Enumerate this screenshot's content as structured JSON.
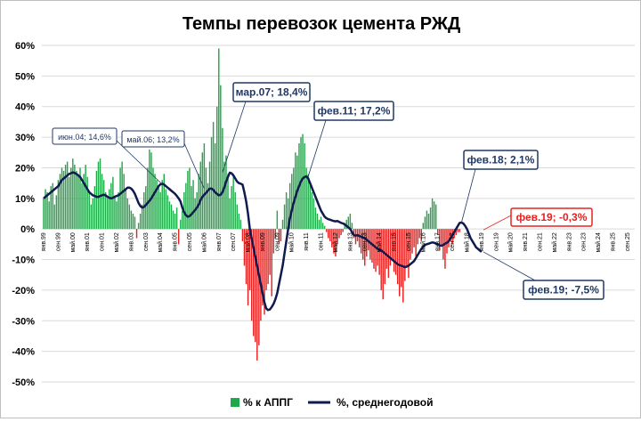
{
  "chart_data": {
    "type": "bar",
    "title": "Темпы перевозок цемента РЖД",
    "ylim": [
      -50,
      60
    ],
    "grid": true,
    "legend_position": "bottom",
    "y_ticks": [
      "60%",
      "50%",
      "40%",
      "30%",
      "20%",
      "10%",
      "0%",
      "-10%",
      "-20%",
      "-30%",
      "-40%",
      "-50%"
    ],
    "x_ticks": [
      "янв.99",
      "сен.99",
      "май.00",
      "янв.01",
      "сен.01",
      "май.02",
      "янв.03",
      "сен.03",
      "май.04",
      "янв.05",
      "сен.05",
      "май.06",
      "янв.07",
      "сен.07",
      "май.08",
      "янв.09",
      "сен.09",
      "май.10",
      "янв.11",
      "сен.11",
      "май.12",
      "янв.13",
      "сен.13",
      "май.14",
      "янв.15",
      "сен.15",
      "май.16",
      "янв.17",
      "сен.17",
      "май.18",
      "янв.19",
      "сен.19",
      "май.20",
      "янв.21",
      "сен.21",
      "май.22",
      "янв.23",
      "сен.23",
      "май.24",
      "янв.25",
      "сен.25"
    ],
    "series": [
      {
        "name": "% к АППГ",
        "type": "bar",
        "positive_color": "#21a84a",
        "negative_color": "#e8201f",
        "values": [
          10,
          13,
          12,
          9,
          14,
          15,
          8,
          11,
          16,
          18,
          20,
          19,
          21,
          22,
          17,
          20,
          23,
          21,
          19,
          18,
          20,
          15,
          18,
          21,
          17,
          12,
          8,
          10,
          14,
          19,
          22,
          23,
          18,
          16,
          12,
          10,
          13,
          15,
          17,
          11,
          9,
          12,
          20,
          22,
          18,
          13,
          10,
          8,
          6,
          5,
          4,
          -3,
          2,
          5,
          8,
          12,
          14,
          20,
          26,
          25,
          20,
          18,
          16,
          14,
          12,
          16,
          18,
          13,
          11,
          9,
          8,
          6,
          5,
          7,
          -5,
          3,
          6,
          12,
          15,
          19,
          20,
          14,
          16,
          10,
          12,
          18,
          22,
          25,
          28,
          20,
          15,
          22,
          30,
          35,
          28,
          40,
          59,
          47,
          33,
          22,
          24,
          18,
          10,
          14,
          18,
          12,
          8,
          5,
          3,
          -4,
          -12,
          -18,
          -25,
          -20,
          -30,
          -35,
          -37,
          -43,
          -38,
          -30,
          -25,
          -28,
          -20,
          -18,
          -15,
          -22,
          -8,
          -3,
          6,
          -5,
          -4,
          3,
          8,
          12,
          10,
          15,
          18,
          20,
          25,
          24,
          28,
          30,
          31,
          28,
          20,
          18,
          15,
          12,
          10,
          7,
          5,
          3,
          4,
          2,
          1,
          -1,
          -3,
          -4,
          -6,
          -8,
          -9,
          -5,
          -3,
          -2,
          -1,
          2,
          3,
          4,
          5,
          2,
          -3,
          -5,
          -4,
          -6,
          -8,
          -10,
          -12,
          -9,
          -7,
          -10,
          -11,
          -13,
          -14,
          -12,
          -15,
          -20,
          -23,
          -18,
          -13,
          -16,
          -12,
          -10,
          -14,
          -15,
          -18,
          -22,
          -19,
          -24,
          -17,
          -12,
          -16,
          -10,
          -8,
          -6,
          -9,
          -5,
          -3,
          -4,
          2,
          4,
          6,
          5,
          7,
          10,
          9,
          8,
          -2,
          -7,
          -5,
          -10,
          -13,
          -8,
          -6,
          -4,
          -5,
          -3,
          -2,
          -1,
          -1
        ]
      },
      {
        "name": "%, среднегодовой",
        "type": "line",
        "color": "#0f1a4f",
        "values": [
          10,
          10.5,
          11,
          11.5,
          12,
          12.5,
          13,
          13.5,
          14,
          15,
          16,
          16.5,
          17,
          17.5,
          18,
          18.2,
          18.5,
          18.3,
          18,
          17.5,
          17,
          16,
          15,
          14,
          13,
          12,
          11.5,
          11,
          10.8,
          10.5,
          10.5,
          10.8,
          11,
          11.2,
          11,
          10.5,
          10.2,
          10,
          10.2,
          10.5,
          10.8,
          11,
          11.5,
          12,
          12.5,
          13,
          13.5,
          13.5,
          13.2,
          12.5,
          11.5,
          10,
          8.5,
          7.5,
          7,
          7.2,
          7.8,
          8.5,
          9.2,
          10,
          11,
          12,
          13,
          14,
          14.6,
          14.8,
          14.5,
          14,
          13.5,
          13,
          12.5,
          12,
          11.5,
          10.8,
          10,
          9,
          7,
          5.5,
          4.5,
          4,
          4.2,
          4.8,
          5.5,
          6.2,
          7,
          8,
          9.5,
          10.5,
          11.2,
          11.8,
          12.5,
          13.2,
          13.2,
          12.8,
          12,
          11.5,
          11,
          11.2,
          12,
          13.5,
          15.5,
          17,
          18.4,
          18.2,
          17.5,
          16.5,
          15.5,
          15,
          14.8,
          14.5,
          12,
          9,
          5,
          0,
          -3,
          -6,
          -9,
          -12,
          -15,
          -18,
          -21,
          -24,
          -26,
          -26.5,
          -26.3,
          -25.5,
          -24.5,
          -23,
          -21,
          -18,
          -15,
          -12,
          -8,
          -4,
          0,
          3.5,
          6,
          8.5,
          10.5,
          12.5,
          14,
          15.5,
          16.5,
          17,
          17.2,
          16.5,
          15,
          13.5,
          12,
          10.5,
          9,
          7.5,
          6,
          5,
          4,
          3.5,
          3.2,
          3,
          2.8,
          2.6,
          2.5,
          2.6,
          2.3,
          2,
          1.8,
          1.5,
          1,
          0.5,
          0,
          -1,
          -2,
          -2.2,
          -2,
          -2.3,
          -2.5,
          -2.8,
          -3,
          -3.5,
          -4,
          -4.5,
          -5,
          -5.5,
          -6,
          -6.5,
          -6.8,
          -7,
          -7.5,
          -8,
          -8.5,
          -9,
          -9.5,
          -10,
          -10.5,
          -11,
          -11.5,
          -11.8,
          -12,
          -12.2,
          -12.5,
          -12.3,
          -12,
          -11.5,
          -11,
          -10.5,
          -9.5,
          -8.5,
          -7.5,
          -6.5,
          -5.8,
          -5.2,
          -5,
          -4.8,
          -4.6,
          -4.4,
          -4.5,
          -4.8,
          -5,
          -5.3,
          -5.5,
          -5.2,
          -4.8,
          -4.5,
          -4,
          -3,
          -2,
          -1,
          0,
          1,
          2,
          2.1,
          1.8,
          1,
          0,
          -1.5,
          -3,
          -4,
          -5,
          -6,
          -6.5,
          -7,
          -7.5
        ]
      }
    ],
    "annotations": [
      {
        "text": "июн.04; 14,6%",
        "style": "small",
        "month_index": 65,
        "value": 14.6
      },
      {
        "text": "май.06; 13,2%",
        "style": "small",
        "month_index": 88,
        "value": 13.2
      },
      {
        "text": "мар.07; 18,4%",
        "style": "bold",
        "month_index": 98,
        "value": 18.4
      },
      {
        "text": "фев.11; 17,2%",
        "style": "bold",
        "month_index": 145,
        "value": 17.2
      },
      {
        "text": "фев.18; 2,1%",
        "style": "bold",
        "month_index": 229,
        "value": 2.1
      },
      {
        "text": "фев.19; -0,3%",
        "style": "red",
        "month_index": 241,
        "value": -0.3
      },
      {
        "text": "фев.19; -7,5%",
        "style": "bold",
        "month_index": 241,
        "value": -7.5
      }
    ]
  }
}
